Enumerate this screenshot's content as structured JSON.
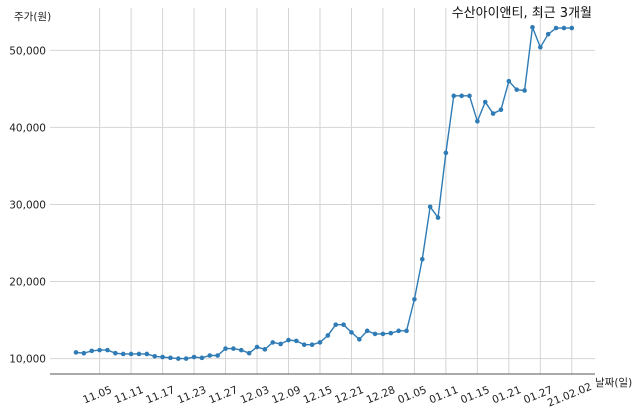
{
  "chart_data": {
    "type": "line",
    "title": "수산아이앤티, 최근 3개월",
    "xlabel": "날짜(일)",
    "ylabel": "주가(원)",
    "ylim": [
      8000,
      55500
    ],
    "yticks": [
      10000,
      20000,
      30000,
      40000,
      50000
    ],
    "ytick_labels": [
      "10,000",
      "20,000",
      "30,000",
      "40,000",
      "50,000"
    ],
    "xticks": [
      "11.05",
      "11.11",
      "11.17",
      "11.23",
      "11.27",
      "12.03",
      "12.09",
      "12.15",
      "12.21",
      "12.28",
      "01.05",
      "01.11",
      "01.15",
      "01.21",
      "01.27",
      "21.02.02"
    ],
    "grid": true,
    "color": "#2f7bb5",
    "series": [
      {
        "x": [
          "11.02",
          "11.03",
          "11.04",
          "11.05",
          "11.06",
          "11.09",
          "11.10",
          "11.11",
          "11.12",
          "11.13",
          "11.16",
          "11.17",
          "11.18",
          "11.19",
          "11.20",
          "11.23",
          "11.24",
          "11.25",
          "11.26",
          "11.27",
          "11.30",
          "12.01",
          "12.02",
          "12.03",
          "12.04",
          "12.07",
          "12.08",
          "12.09",
          "12.10",
          "12.11",
          "12.14",
          "12.15",
          "12.16",
          "12.17",
          "12.18",
          "12.21",
          "12.22",
          "12.23",
          "12.24",
          "12.28",
          "12.29",
          "12.30",
          "01.04",
          "01.05",
          "01.06",
          "01.07",
          "01.08",
          "01.11",
          "01.12",
          "01.13",
          "01.14",
          "01.15",
          "01.18",
          "01.19",
          "01.20",
          "01.21",
          "01.22",
          "01.25",
          "01.26",
          "01.27",
          "01.28",
          "01.29",
          "02.01",
          "02.02"
        ],
        "values": [
          10800,
          10700,
          11000,
          11100,
          11100,
          10700,
          10600,
          10600,
          10600,
          10600,
          10300,
          10200,
          10100,
          10000,
          10000,
          10200,
          10100,
          10400,
          10400,
          11300,
          11300,
          11100,
          10700,
          11500,
          11200,
          12100,
          11900,
          12400,
          12300,
          11800,
          11800,
          12100,
          13000,
          14400,
          14400,
          13400,
          12500,
          13600,
          13200,
          13200,
          13300,
          13600,
          13600,
          17700,
          22900,
          29700,
          28300,
          36700,
          44100,
          44100,
          44100,
          40800,
          43300,
          41800,
          42300,
          46000,
          44900,
          44800,
          53000,
          50400,
          52100,
          52900,
          52900,
          52900
        ]
      }
    ]
  }
}
